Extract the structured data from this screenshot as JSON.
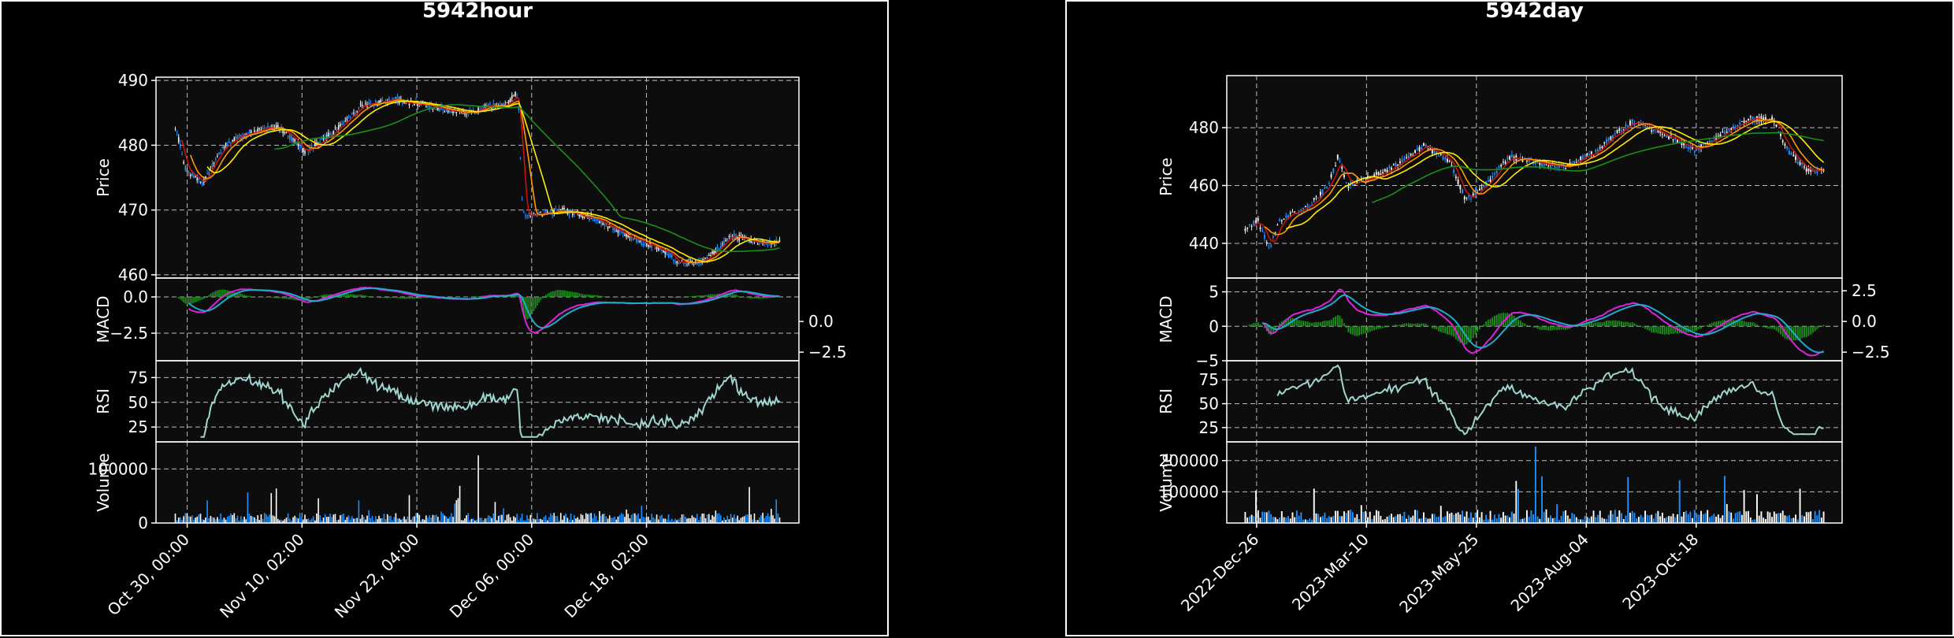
{
  "colors": {
    "background": "#000000",
    "plot_bg": "#0d0d0d",
    "axes": "#ffffff",
    "grid": "#bbbbbb",
    "candle_up": "#1e90ff",
    "candle_down": "#f2f2f2",
    "ma_short": "#cc1111",
    "ma_mid": "#ff9900",
    "ma_mid2": "#ffee00",
    "ma_long": "#1a8f1a",
    "macd_line": "#dd22dd",
    "signal_line": "#22aacc",
    "macd_hist": "#1a8f1a",
    "rsi_line": "#9fd6d0",
    "volume_up": "#1e90ff",
    "volume_down": "#ffffff"
  },
  "chart_data": [
    {
      "type": "candlestick",
      "title": "5942hour",
      "price_ylabel": "Price",
      "price_ticks": [
        "460",
        "470",
        "480",
        "490"
      ],
      "price_ylim": [
        459.5,
        490.5
      ],
      "macd_ylabel": "MACD",
      "macd_left_ticks": [
        "−2.5",
        "0.0"
      ],
      "macd_right_ticks": [
        "−2.5",
        "0.0"
      ],
      "macd_ylim": [
        -4.4,
        1.3
      ],
      "rsi_ylabel": "RSI",
      "rsi_ticks": [
        "25",
        "50",
        "75"
      ],
      "rsi_ylim": [
        10,
        92
      ],
      "volume_ylabel": "Volume",
      "volume_ticks": [
        "0",
        "100000"
      ],
      "volume_ylim": [
        0,
        150000
      ],
      "x_tick_labels": [
        "Oct 30, 00:00",
        "Nov 10, 02:00",
        "Nov 22, 04:00",
        "Dec 06, 00:00",
        "Dec 18, 02:00"
      ],
      "n_bars": 360,
      "price_path": [
        [
          0,
          483
        ],
        [
          8,
          476
        ],
        [
          20,
          474
        ],
        [
          35,
          480
        ],
        [
          55,
          482
        ],
        [
          75,
          483
        ],
        [
          95,
          479
        ],
        [
          115,
          482
        ],
        [
          135,
          486
        ],
        [
          160,
          487
        ],
        [
          185,
          486
        ],
        [
          210,
          485
        ],
        [
          228,
          486
        ],
        [
          240,
          486
        ],
        [
          248,
          488
        ],
        [
          250,
          486
        ],
        [
          252,
          473
        ],
        [
          254,
          469
        ],
        [
          260,
          469
        ],
        [
          280,
          470
        ],
        [
          300,
          469
        ],
        [
          320,
          467
        ],
        [
          340,
          465
        ],
        [
          355,
          464
        ],
        [
          365,
          462
        ],
        [
          385,
          462
        ],
        [
          405,
          466
        ],
        [
          425,
          465
        ],
        [
          440,
          465
        ]
      ],
      "volume_baseline": 11000,
      "volume_peak": 125000,
      "macd_range": [
        -4.0,
        0.9
      ],
      "rsi_range": [
        15,
        88
      ]
    },
    {
      "type": "candlestick",
      "title": "5942day",
      "price_ylabel": "Price",
      "price_ticks": [
        "440",
        "460",
        "480"
      ],
      "price_ylim": [
        428,
        498
      ],
      "macd_ylabel": "MACD",
      "macd_left_ticks": [
        "−5",
        "0",
        "5"
      ],
      "macd_right_ticks": [
        "−2.5",
        "0.0",
        "2.5"
      ],
      "macd_ylim": [
        -5,
        7
      ],
      "rsi_ylabel": "RSI",
      "rsi_ticks": [
        "25",
        "50",
        "75"
      ],
      "rsi_ylim": [
        10,
        95
      ],
      "volume_ylabel": "Volume",
      "volume_ticks": [
        "100000",
        "200000"
      ],
      "volume_ylim": [
        0,
        260000
      ],
      "x_tick_labels": [
        "2022-Dec-26",
        "2023-Mar-10",
        "2023-May-25",
        "2023-Aug-04",
        "2023-Oct-18"
      ],
      "n_bars": 270,
      "price_path": [
        [
          0,
          445
        ],
        [
          8,
          448
        ],
        [
          15,
          438
        ],
        [
          22,
          448
        ],
        [
          40,
          453
        ],
        [
          52,
          460
        ],
        [
          58,
          470
        ],
        [
          64,
          460
        ],
        [
          80,
          463
        ],
        [
          98,
          468
        ],
        [
          112,
          474
        ],
        [
          128,
          468
        ],
        [
          138,
          455
        ],
        [
          150,
          460
        ],
        [
          165,
          470
        ],
        [
          180,
          468
        ],
        [
          200,
          466
        ],
        [
          220,
          472
        ],
        [
          232,
          478
        ],
        [
          242,
          482
        ],
        [
          262,
          478
        ],
        [
          282,
          472
        ],
        [
          298,
          478
        ],
        [
          315,
          483
        ],
        [
          330,
          483
        ],
        [
          340,
          472
        ],
        [
          352,
          465
        ],
        [
          362,
          465
        ]
      ],
      "volume_baseline": 25000,
      "volume_peak": 245000,
      "macd_range": [
        -4.2,
        6.5
      ],
      "rsi_range": [
        18,
        92
      ]
    }
  ]
}
